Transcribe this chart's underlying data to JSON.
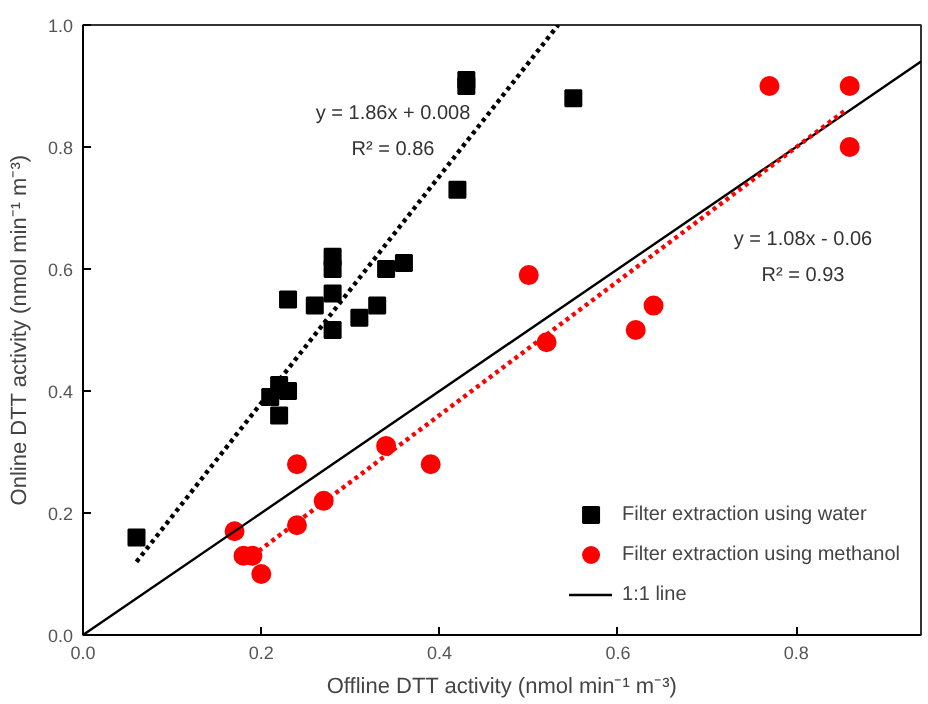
{
  "chart_data": {
    "type": "scatter",
    "xlabel": "Offline DTT activity (nmol min⁻¹ m⁻³)",
    "ylabel": "Online DTT activity (nmol min⁻¹ m⁻³)",
    "xlim": [
      0,
      0.94
    ],
    "ylim": [
      0,
      1.0
    ],
    "xticks": [
      {
        "value": 0,
        "label": "0.0"
      },
      0.2,
      0.4,
      0.6,
      0.8
    ],
    "yticks": [
      {
        "value": 0,
        "label": "0.0"
      },
      0.2,
      0.4,
      0.6,
      0.8,
      {
        "value": 1,
        "label": "1.0"
      }
    ],
    "grid": false,
    "legend": "bottom right",
    "series": [
      {
        "name": "Filter extraction using water",
        "marker": "square",
        "color": "#000000",
        "x": [
          0.23,
          0.26,
          0.28,
          0.28,
          0.28,
          0.28,
          0.31,
          0.33,
          0.34,
          0.36,
          0.42,
          0.43,
          0.43,
          0.55,
          0.21,
          0.22,
          0.23,
          0.22,
          0.06
        ],
        "values": [
          0.55,
          0.54,
          0.62,
          0.6,
          0.56,
          0.5,
          0.52,
          0.54,
          0.6,
          0.61,
          0.73,
          0.91,
          0.9,
          0.88,
          0.39,
          0.41,
          0.4,
          0.36,
          0.16
        ]
      },
      {
        "name": "Filter extraction using methanol",
        "marker": "circle",
        "color": "#ff0000",
        "x": [
          0.17,
          0.18,
          0.19,
          0.2,
          0.24,
          0.24,
          0.27,
          0.34,
          0.39,
          0.52,
          0.62,
          0.5,
          0.64,
          0.77,
          0.86,
          0.86
        ],
        "values": [
          0.17,
          0.13,
          0.13,
          0.1,
          0.28,
          0.18,
          0.22,
          0.31,
          0.28,
          0.48,
          0.5,
          0.59,
          0.54,
          0.9,
          0.9,
          0.8
        ]
      },
      {
        "name": "1:1 line",
        "type": "line",
        "line_style": "solid",
        "color": "#000000",
        "x": [
          0,
          0.94
        ],
        "values": [
          0,
          0.94
        ]
      },
      {
        "type": "line",
        "line_style": "dotted",
        "color": "#000000",
        "x": [
          0.06,
          0.533
        ],
        "values": [
          0.12,
          1.0
        ]
      },
      {
        "type": "line",
        "line_style": "dotted",
        "color": "#ff0000",
        "x": [
          0.19,
          0.855
        ],
        "values": [
          0.13,
          0.86
        ]
      }
    ],
    "annotations": [
      "y = 1.86x + 0.008",
      "R² = 0.86",
      "y = 1.08x - 0.06",
      "R² = 0.93"
    ]
  }
}
